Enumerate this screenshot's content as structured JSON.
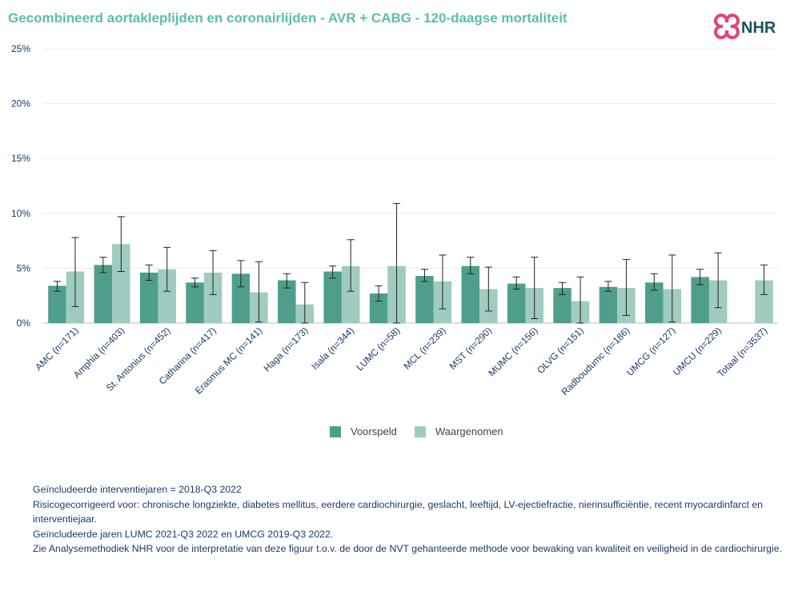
{
  "title": "Gecombineerd aortakleplijden en coronairlijden - AVR + CABG - 120-daagse mortaliteit",
  "logo": {
    "text": "NHR",
    "icon": "nhr-cross-logo-icon"
  },
  "colors": {
    "voorspeld": "#4f9e8c",
    "waargenomen": "#9fcbc0",
    "title": "#5bbfa7",
    "text": "#1a3a66",
    "logo_pink": "#e0457b",
    "logo_dark": "#17545a"
  },
  "chart_data": {
    "type": "bar",
    "title": "Gecombineerd aortakleplijden en coronairlijden - AVR + CABG - 120-daagse mortaliteit",
    "xlabel": "",
    "ylabel": "",
    "ylim": [
      0,
      25
    ],
    "yticks": [
      0,
      5,
      10,
      15,
      20,
      25
    ],
    "ytick_labels": [
      "0%",
      "5%",
      "10%",
      "15%",
      "20%",
      "25%"
    ],
    "grid": true,
    "legend_position": "bottom-center",
    "categories": [
      "AMC (n=171)",
      "Amphia (n=403)",
      "St. Antonius (n=452)",
      "Catharina (n=417)",
      "Erasmus MC (n=141)",
      "Haga (n=173)",
      "Isala (n=344)",
      "LUMC (n=58)",
      "MCL (n=239)",
      "MST (n=290)",
      "MUMC (n=156)",
      "OLVG (n=151)",
      "Radboudumc (n=186)",
      "UMCG (n=127)",
      "UMCU (n=229)",
      "Totaal (n=3537)"
    ],
    "series": [
      {
        "name": "Voorspeld",
        "values": [
          3.4,
          5.3,
          4.6,
          3.7,
          4.5,
          3.9,
          4.7,
          2.7,
          4.3,
          5.2,
          3.6,
          3.2,
          3.3,
          3.7,
          4.2,
          null
        ],
        "ci_low": [
          2.9,
          4.6,
          3.9,
          3.3,
          3.3,
          3.2,
          4.1,
          2.0,
          3.8,
          4.5,
          3.1,
          2.6,
          2.9,
          3.0,
          3.5,
          null
        ],
        "ci_high": [
          3.8,
          6.0,
          5.3,
          4.1,
          5.7,
          4.5,
          5.2,
          3.4,
          4.9,
          6.0,
          4.2,
          3.7,
          3.8,
          4.5,
          4.9,
          null
        ]
      },
      {
        "name": "Waargenomen",
        "values": [
          4.7,
          7.2,
          4.9,
          4.6,
          2.8,
          1.7,
          5.2,
          5.2,
          3.8,
          3.1,
          3.2,
          2.0,
          3.2,
          3.1,
          3.9,
          3.9
        ],
        "ci_low": [
          1.5,
          4.7,
          2.9,
          2.6,
          0.1,
          0.0,
          2.9,
          0.0,
          1.3,
          1.1,
          0.4,
          0.0,
          0.7,
          0.1,
          1.4,
          2.6
        ],
        "ci_high": [
          7.8,
          9.7,
          6.9,
          6.6,
          5.6,
          3.7,
          7.6,
          10.9,
          6.2,
          5.1,
          6.0,
          4.2,
          5.8,
          6.2,
          6.4,
          5.3
        ]
      }
    ]
  },
  "notes": [
    "Geïncludeerde interventiejaren = 2018-Q3 2022",
    "Risicogecorrigeerd voor: chronische longziekte, diabetes mellitus, eerdere cardiochirurgie, geslacht, leeftijd, LV-ejectiefractie, nierinsufficiëntie, recent myocardinfarct en interventiejaar.",
    "Geïncludeerde jaren LUMC 2021-Q3 2022 en UMCG 2019-Q3 2022.",
    "Zie Analysemethodiek NHR voor de interpretatie van deze figuur t.o.v. de door de NVT gehanteerde methode voor bewaking van kwaliteit en veiligheid in de cardiochirurgie."
  ]
}
